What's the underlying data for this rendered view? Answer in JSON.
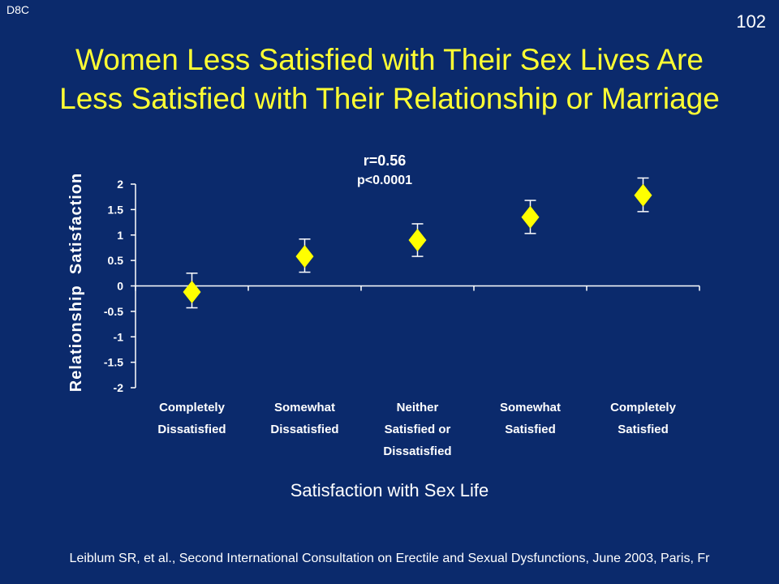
{
  "header": {
    "code": "D8C",
    "slide_number": "102",
    "title_line1": "Women Less Satisfied with Their Sex Lives Are",
    "title_line2": "Less Satisfied with Their Relationship or Marriage"
  },
  "stats": {
    "r": "r=0.56",
    "p": "p<0.0001"
  },
  "footer": "Leiblum SR, et al., Second International Consultation on Erectile and Sexual Dysfunctions, June 2003, Paris, Fr",
  "colors": {
    "background": "#0b2a6c",
    "title": "#ffff33",
    "marker": "#ffff00",
    "text": "#ffffff"
  },
  "chart_data": {
    "type": "scatter",
    "title": "",
    "ylabel": "Relationship  Satisfaction",
    "xlabel": "Satisfaction with Sex Life",
    "ylim": [
      -2,
      2
    ],
    "yticks": [
      "2",
      "1.5",
      "1",
      "0.5",
      "0",
      "-0.5",
      "-1",
      "-1.5",
      "-2"
    ],
    "categories": [
      [
        "Completely",
        "Dissatisfied"
      ],
      [
        "Somewhat",
        "Dissatisfied"
      ],
      [
        "Neither",
        "Satisfied or",
        "Dissatisfied"
      ],
      [
        "Somewhat",
        "Satisfied"
      ],
      [
        "Completely",
        "Satisfied"
      ]
    ],
    "values": [
      -0.12,
      0.58,
      0.9,
      1.35,
      1.78
    ],
    "error_low": [
      -0.43,
      0.27,
      0.58,
      1.03,
      1.46
    ],
    "error_high": [
      0.25,
      0.92,
      1.22,
      1.68,
      2.12
    ],
    "grid": false,
    "legend": "none"
  }
}
